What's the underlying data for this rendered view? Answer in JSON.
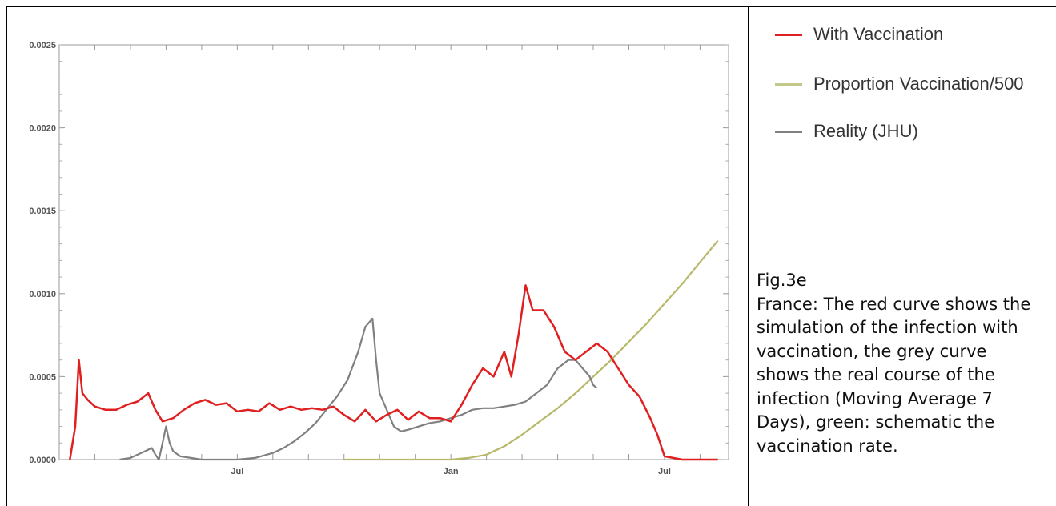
{
  "legend": [
    {
      "label": "With Vaccination",
      "color": "#e02020"
    },
    {
      "label": "Proportion Vaccination/500",
      "color": "#c3c98a"
    },
    {
      "label": "Reality (JHU)",
      "color": "#808080"
    }
  ],
  "caption": {
    "lines": [
      "Fig.3e",
      "France: The red curve shows the",
      "simulation of the infection with",
      "vaccination, the grey curve",
      "shows the real course of the",
      "infection (Moving Average 7",
      "Days), green: schematic the",
      "vaccination rate."
    ]
  },
  "chart_data": {
    "type": "line",
    "title": "",
    "xlabel": "",
    "ylabel": "",
    "x_unit": "months since 2020-01-01",
    "xlim": [
      1.0,
      19.8
    ],
    "ylim": [
      0,
      0.0025
    ],
    "yticks": [
      {
        "value": 0,
        "label": "0.0000"
      },
      {
        "value": 0.0005,
        "label": "0.0005"
      },
      {
        "value": 0.001,
        "label": "0.0010"
      },
      {
        "value": 0.0015,
        "label": "0.0015"
      },
      {
        "value": 0.002,
        "label": "0.0020"
      },
      {
        "value": 0.0025,
        "label": "0.0025"
      }
    ],
    "xticks": [
      {
        "value": 6,
        "label": "Jul"
      },
      {
        "value": 12,
        "label": "Jan"
      },
      {
        "value": 18,
        "label": "Jul"
      }
    ],
    "grid": false,
    "series": [
      {
        "name": "With Vaccination",
        "color": "#e02020",
        "x": [
          1.3,
          1.45,
          1.55,
          1.65,
          1.8,
          2.0,
          2.3,
          2.6,
          2.9,
          3.2,
          3.5,
          3.7,
          3.9,
          4.2,
          4.5,
          4.8,
          5.1,
          5.4,
          5.7,
          6.0,
          6.3,
          6.6,
          6.9,
          7.2,
          7.5,
          7.8,
          8.1,
          8.4,
          8.7,
          9.0,
          9.3,
          9.6,
          9.9,
          10.2,
          10.5,
          10.8,
          11.1,
          11.4,
          11.7,
          12.0,
          12.3,
          12.6,
          12.9,
          13.2,
          13.5,
          13.7,
          13.9,
          14.1,
          14.3,
          14.6,
          14.9,
          15.2,
          15.5,
          15.8,
          16.1,
          16.4,
          16.7,
          17.0,
          17.3,
          17.6,
          17.8,
          18.0,
          18.5,
          19.0,
          19.5
        ],
        "y": [
          0.0,
          0.0002,
          0.0006,
          0.0004,
          0.00036,
          0.00032,
          0.0003,
          0.0003,
          0.00033,
          0.00035,
          0.0004,
          0.0003,
          0.00023,
          0.00025,
          0.0003,
          0.00034,
          0.00036,
          0.00033,
          0.00034,
          0.00029,
          0.0003,
          0.00029,
          0.00034,
          0.0003,
          0.00032,
          0.0003,
          0.00031,
          0.0003,
          0.00032,
          0.00027,
          0.00023,
          0.0003,
          0.00023,
          0.00027,
          0.0003,
          0.00024,
          0.00029,
          0.00025,
          0.00025,
          0.00023,
          0.00033,
          0.00045,
          0.00055,
          0.0005,
          0.00065,
          0.0005,
          0.00075,
          0.00105,
          0.0009,
          0.0009,
          0.0008,
          0.00065,
          0.0006,
          0.00065,
          0.0007,
          0.00065,
          0.00055,
          0.00045,
          0.00038,
          0.00025,
          0.00015,
          2e-05,
          0.0,
          0.0,
          0.0
        ]
      },
      {
        "name": "Proportion Vaccination/500",
        "color": "#b8b86a",
        "x": [
          9.0,
          12.0,
          12.5,
          13.0,
          13.5,
          14.0,
          14.5,
          15.0,
          15.5,
          16.0,
          16.5,
          17.0,
          17.5,
          18.0,
          18.5,
          19.0,
          19.5
        ],
        "y": [
          0.0,
          0.0,
          1e-05,
          3e-05,
          8e-05,
          0.00015,
          0.00023,
          0.00031,
          0.0004,
          0.0005,
          0.0006,
          0.00071,
          0.00082,
          0.00094,
          0.00106,
          0.00119,
          0.00132
        ]
      },
      {
        "name": "Reality (JHU)",
        "color": "#808080",
        "x": [
          2.7,
          3.0,
          3.3,
          3.6,
          3.7,
          3.8,
          3.9,
          4.0,
          4.1,
          4.2,
          4.4,
          4.7,
          5.0,
          5.5,
          6.0,
          6.5,
          7.0,
          7.3,
          7.6,
          7.9,
          8.2,
          8.5,
          8.8,
          9.1,
          9.4,
          9.6,
          9.8,
          9.9,
          10.0,
          10.1,
          10.2,
          10.4,
          10.6,
          10.8,
          11.1,
          11.4,
          11.7,
          12.0,
          12.3,
          12.6,
          12.9,
          13.2,
          13.5,
          13.8,
          14.1,
          14.4,
          14.7,
          15.0,
          15.3,
          15.5,
          15.7,
          15.9,
          16.0,
          16.1
        ],
        "y": [
          0.0,
          1e-05,
          4e-05,
          7e-05,
          3e-05,
          0.0,
          0.0001,
          0.0002,
          0.0001,
          5e-05,
          2e-05,
          1e-05,
          0.0,
          0.0,
          0.0,
          1e-05,
          4e-05,
          7e-05,
          0.00011,
          0.00016,
          0.00022,
          0.0003,
          0.00038,
          0.00048,
          0.00065,
          0.0008,
          0.00085,
          0.0006,
          0.0004,
          0.00035,
          0.0003,
          0.0002,
          0.00017,
          0.00018,
          0.0002,
          0.00022,
          0.00023,
          0.00025,
          0.00027,
          0.0003,
          0.00031,
          0.00031,
          0.00032,
          0.00033,
          0.00035,
          0.0004,
          0.00045,
          0.00055,
          0.0006,
          0.0006,
          0.00055,
          0.0005,
          0.00045,
          0.00043
        ]
      }
    ]
  }
}
